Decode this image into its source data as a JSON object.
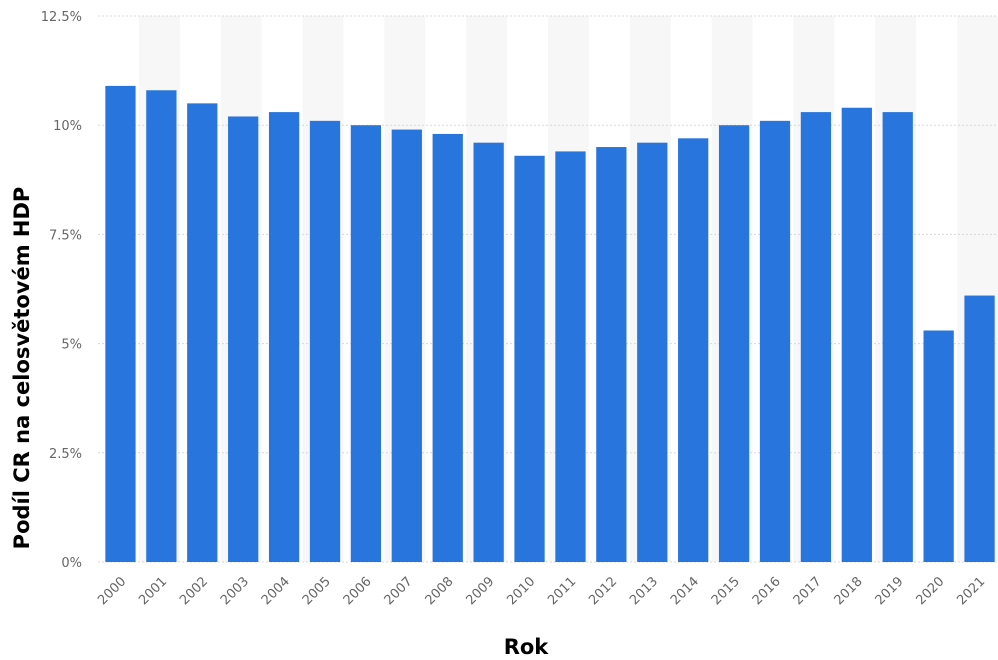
{
  "chart_data": {
    "type": "bar",
    "categories": [
      "2000",
      "2001",
      "2002",
      "2003",
      "2004",
      "2005",
      "2006",
      "2007",
      "2008",
      "2009",
      "2010",
      "2011",
      "2012",
      "2013",
      "2014",
      "2015",
      "2016",
      "2017",
      "2018",
      "2019",
      "2020",
      "2021"
    ],
    "values": [
      10.9,
      10.8,
      10.5,
      10.2,
      10.3,
      10.1,
      10.0,
      9.9,
      9.8,
      9.6,
      9.3,
      9.4,
      9.5,
      9.6,
      9.7,
      10.0,
      10.1,
      10.3,
      10.4,
      10.3,
      5.3,
      6.1
    ],
    "xlabel": "Rok",
    "ylabel": "Podíl CR na celosvětovém HDP",
    "ylim": [
      0,
      12.5
    ],
    "yticks": [
      0,
      2.5,
      5,
      7.5,
      10,
      12.5
    ],
    "ytick_labels": [
      "0%",
      "2.5%",
      "5%",
      "7.5%",
      "10%",
      "12.5%"
    ],
    "grid": true,
    "colors": {
      "bar": "#2876dd",
      "grid": "#d8d8d8",
      "band": "#f7f7f7"
    }
  }
}
